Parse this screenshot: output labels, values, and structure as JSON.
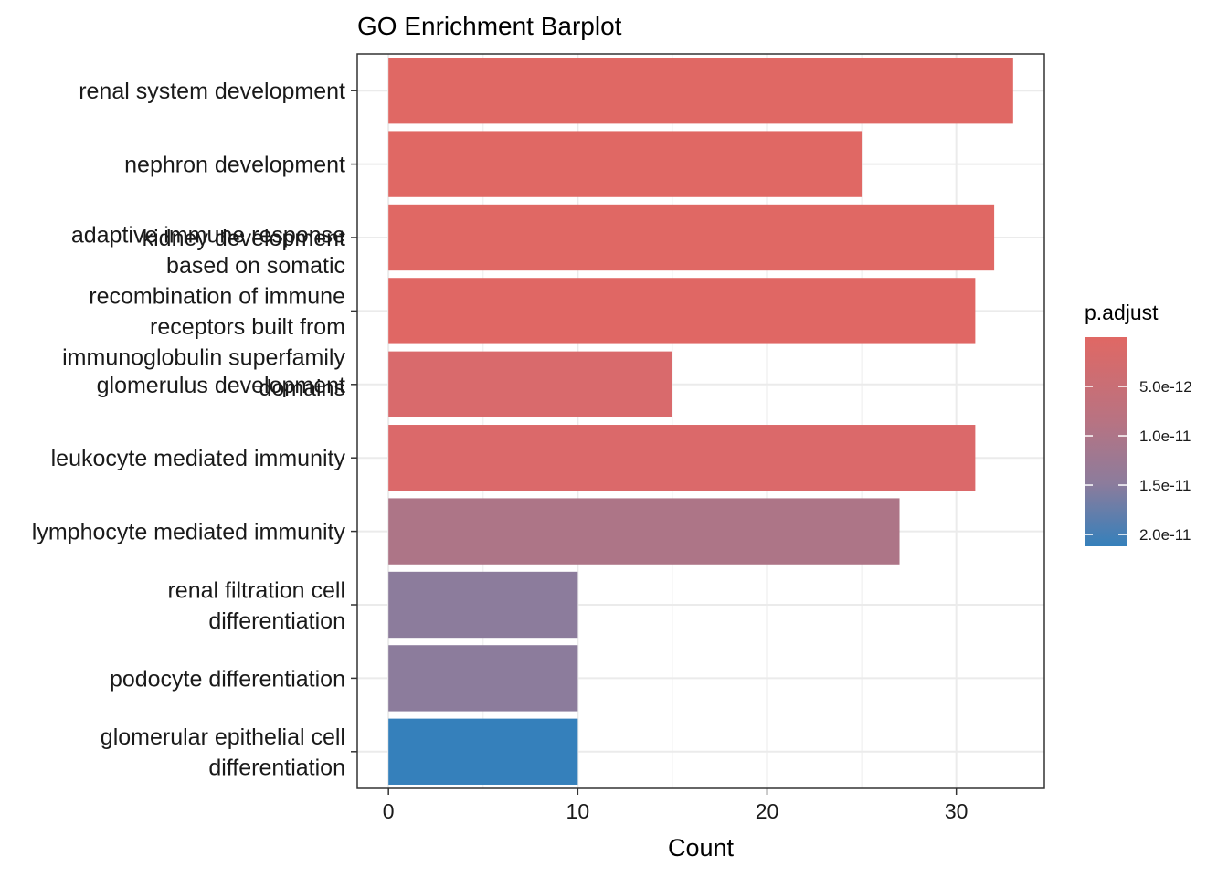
{
  "chart_data": {
    "type": "bar",
    "orientation": "horizontal",
    "title": "GO Enrichment Barplot",
    "xlabel": "Count",
    "ylabel": "",
    "xlim": [
      -1.65,
      34.65
    ],
    "xticks": [
      0,
      10,
      20,
      30
    ],
    "grid": true,
    "legend": {
      "title": "p.adjust",
      "placement": "right",
      "ticks": [
        {
          "value": 5e-12,
          "label": "5.0e-12"
        },
        {
          "value": 1e-11,
          "label": "1.0e-11"
        },
        {
          "value": 1.5e-11,
          "label": "1.5e-11"
        },
        {
          "value": 2e-11,
          "label": "2.0e-11"
        }
      ],
      "range": [
        0,
        2.12e-11
      ],
      "low_color": "#E06864",
      "high_color": "#3580BB"
    },
    "bars": [
      {
        "category": [
          "renal system development"
        ],
        "count": 33,
        "p_adjust": 0,
        "color": "#E06864"
      },
      {
        "category": [
          "nephron development"
        ],
        "count": 25,
        "p_adjust": 1e-13,
        "color": "#E06864"
      },
      {
        "category": [
          "kidney development"
        ],
        "count": 32,
        "p_adjust": 1e-13,
        "color": "#E06864"
      },
      {
        "category": [
          "adaptive immune response",
          "based on somatic",
          "recombination of immune",
          "receptors built from",
          "immunoglobulin superfamily",
          "domains"
        ],
        "count": 31,
        "p_adjust": 3e-13,
        "color": "#E06764"
      },
      {
        "category": [
          "glomerulus development"
        ],
        "count": 15,
        "p_adjust": 1.6e-12,
        "color": "#D96A6C"
      },
      {
        "category": [
          "leukocyte mediated immunity"
        ],
        "count": 31,
        "p_adjust": 1e-12,
        "color": "#DB696A"
      },
      {
        "category": [
          "lymphocyte mediated immunity"
        ],
        "count": 27,
        "p_adjust": 9e-12,
        "color": "#AD7587"
      },
      {
        "category": [
          "renal filtration cell",
          "differentiation"
        ],
        "count": 10,
        "p_adjust": 1.3e-11,
        "color": "#8C7C9C"
      },
      {
        "category": [
          "podocyte differentiation"
        ],
        "count": 10,
        "p_adjust": 1.3e-11,
        "color": "#8C7C9C"
      },
      {
        "category": [
          "glomerular epithelial cell",
          "differentiation"
        ],
        "count": 10,
        "p_adjust": 2.12e-11,
        "color": "#3580BB"
      }
    ]
  }
}
